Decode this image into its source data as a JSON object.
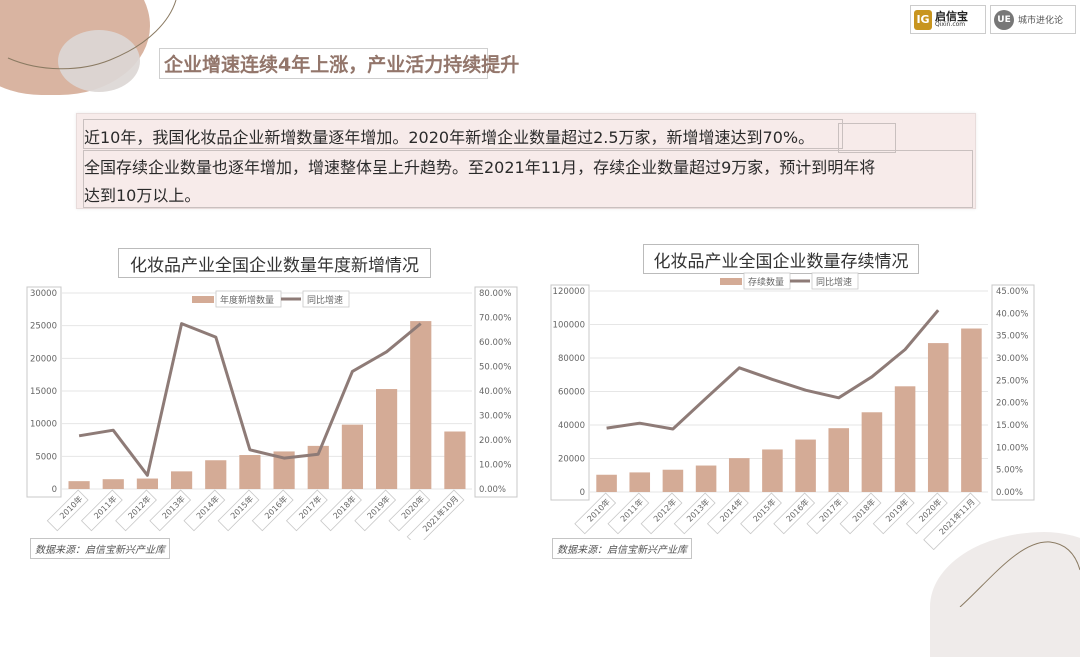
{
  "headline": "企业增速连续4年上涨，产业活力持续提升",
  "logos": {
    "qixin": {
      "cn": "启信宝",
      "en": "Qixin.com"
    },
    "ue": {
      "mark": "UE",
      "cn": "城市进化论"
    }
  },
  "summary": {
    "line1": "近10年，我国化妆品企业新增数量逐年增加。2020年新增企业数量超过2.5万家，新增增速达到70%。",
    "line2": "全国存续企业数量也逐年增加，增速整体呈上升趋势。至2021年11月，存续企业数量超过9万家，预计到明年将",
    "line3": "达到10万以上。"
  },
  "colors": {
    "bar": "#d4ab96",
    "line": "#8e7b77",
    "grid": "#e6e6e6",
    "accent": "#93766b"
  },
  "chart_data": [
    {
      "type": "bar",
      "title": "化妆品产业全国企业数量年度新增情况",
      "categories": [
        "2010年",
        "2011年",
        "2012年",
        "2013年",
        "2014年",
        "2015年",
        "2016年",
        "2017年",
        "2018年",
        "2019年",
        "2020年",
        "2021年10月"
      ],
      "series": [
        {
          "name": "年度新增数量",
          "type": "bar",
          "axis": "left",
          "values": [
            1200,
            1500,
            1600,
            2700,
            4400,
            5200,
            5750,
            6600,
            9850,
            15300,
            25700,
            8800
          ]
        },
        {
          "name": "同比增速",
          "type": "line",
          "axis": "right",
          "values": [
            0.217,
            0.24,
            0.056,
            0.675,
            0.62,
            0.16,
            0.126,
            0.142,
            0.48,
            0.56,
            0.675,
            null
          ]
        }
      ],
      "yleft": {
        "min": 0,
        "max": 30000,
        "ticks": [
          "0",
          "5000",
          "10000",
          "15000",
          "20000",
          "25000",
          "30000"
        ]
      },
      "yright": {
        "min": 0,
        "max": 0.8,
        "ticks": [
          "0.00%",
          "10.00%",
          "20.00%",
          "30.00%",
          "40.00%",
          "50.00%",
          "60.00%",
          "70.00%",
          "80.00%"
        ]
      },
      "legend": [
        "年度新增数量",
        "同比增速"
      ],
      "legend_position": "top",
      "grid": true,
      "source": "数据来源：启信宝新兴产业库"
    },
    {
      "type": "bar",
      "title": "化妆品产业全国企业数量存续情况",
      "categories": [
        "2010年",
        "2011年",
        "2012年",
        "2013年",
        "2014年",
        "2015年",
        "2016年",
        "2017年",
        "2018年",
        "2019年",
        "2020年",
        "2021年11月"
      ],
      "series": [
        {
          "name": "存续数量",
          "type": "bar",
          "axis": "left",
          "values": [
            10300,
            11700,
            13300,
            15800,
            20200,
            25400,
            31300,
            38100,
            47600,
            63100,
            88900,
            97600
          ]
        },
        {
          "name": "同比增速",
          "type": "line",
          "axis": "right",
          "values": [
            0.143,
            0.154,
            0.141,
            0.21,
            0.278,
            0.252,
            0.228,
            0.211,
            0.258,
            0.319,
            0.407,
            null
          ]
        }
      ],
      "yleft": {
        "min": 0,
        "max": 120000,
        "ticks": [
          "0",
          "20000",
          "40000",
          "60000",
          "80000",
          "100000",
          "120000"
        ]
      },
      "yright": {
        "min": 0,
        "max": 0.45,
        "ticks": [
          "0.00%",
          "5.00%",
          "10.00%",
          "15.00%",
          "20.00%",
          "25.00%",
          "30.00%",
          "35.00%",
          "40.00%",
          "45.00%"
        ]
      },
      "legend": [
        "存续数量",
        "同比增速"
      ],
      "legend_position": "top",
      "grid": true,
      "source": "数据来源：启信宝新兴产业库"
    }
  ]
}
